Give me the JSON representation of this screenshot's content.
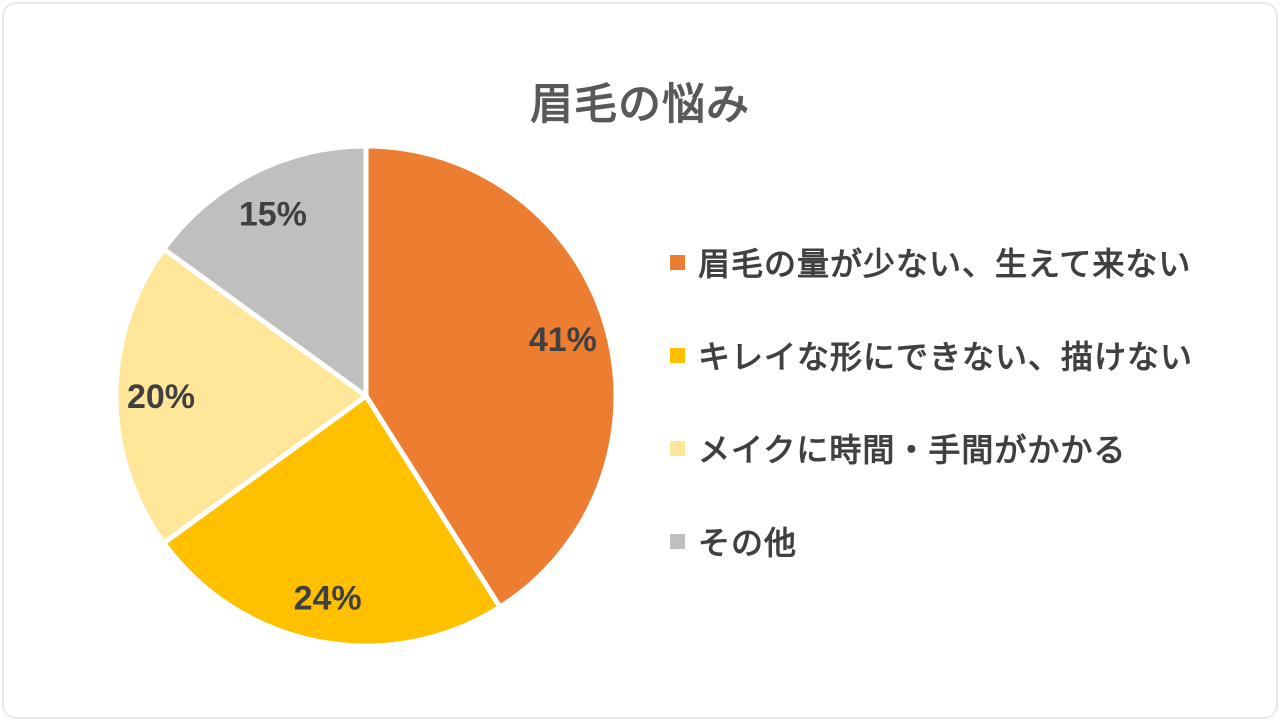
{
  "page": {
    "background": "#FFFFFF",
    "frame_border_color": "#E9E9E9"
  },
  "chart_data": {
    "type": "pie",
    "title": "眉毛の悩み",
    "categories": [
      "眉毛の量が少ない、生えて来ない",
      "キレイな形にできない、描けない",
      "メイクに時間・手間がかかる",
      "その他"
    ],
    "values": [
      41,
      24,
      20,
      15
    ],
    "labels": [
      "41%",
      "24%",
      "20%",
      "15%"
    ],
    "colors": [
      "#ED7D31",
      "#FFC000",
      "#FFE699",
      "#BFBFBF"
    ],
    "slice_border_color": "#FFFFFF",
    "label_color": "#404040",
    "title_color": "#595959",
    "legend_text_color": "#404040",
    "legend_position": "right",
    "start_angle_deg": 0,
    "direction": "clockwise"
  }
}
